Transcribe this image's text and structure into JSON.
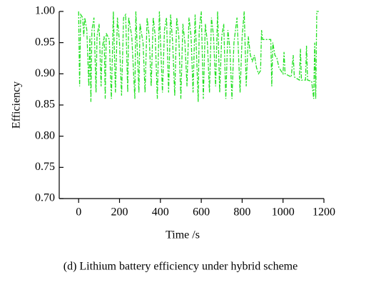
{
  "chart_data": {
    "type": "line",
    "caption": "(d) Lithium battery efficiency under hybrid scheme",
    "xlabel": "Time /s",
    "ylabel": "Efficiency",
    "xlim": [
      -95,
      1200
    ],
    "xticks": [
      0,
      200,
      400,
      600,
      800,
      1000,
      1200
    ],
    "ylim": [
      0.7,
      1.0
    ],
    "yticks": [
      {
        "value": 0.7,
        "label": "0.70"
      },
      {
        "value": 0.75,
        "label": "0.75"
      },
      {
        "value": 0.8,
        "label": "0.80"
      },
      {
        "value": 0.85,
        "label": "0.85"
      },
      {
        "value": 0.9,
        "label": "0.90"
      },
      {
        "value": 0.95,
        "label": "0.95"
      },
      {
        "value": 1.0,
        "label": "1.00"
      }
    ],
    "series": [
      {
        "color": "#22e022",
        "x": [
          0,
          5,
          10,
          20,
          25,
          30,
          40,
          50,
          55,
          60,
          65,
          75,
          85,
          90,
          100,
          110,
          115,
          125,
          130,
          135,
          150,
          160,
          170,
          180,
          190,
          200,
          210,
          220,
          230,
          240,
          245,
          260,
          275,
          280,
          295,
          300,
          315,
          325,
          335,
          345,
          355,
          365,
          375,
          385,
          395,
          410,
          420,
          430,
          440,
          450,
          460,
          470,
          480,
          490,
          500,
          510,
          520,
          530,
          540,
          550,
          560,
          570,
          585,
          590,
          600,
          610,
          620,
          630,
          640,
          650,
          660,
          670,
          680,
          690,
          700,
          710,
          720,
          730,
          740,
          750,
          760,
          775,
          790,
          800,
          810,
          820,
          830,
          840,
          850,
          860,
          870,
          880,
          890,
          895,
          900,
          940,
          945,
          950,
          960,
          970,
          980,
          990,
          1000,
          1005,
          1010,
          1040,
          1050,
          1055,
          1080,
          1085,
          1090,
          1110,
          1115,
          1120,
          1140,
          1150,
          1155,
          1160,
          1165,
          1175
        ],
        "values": [
          1.0,
          0.88,
          0.995,
          0.99,
          0.96,
          0.99,
          0.97,
          0.88,
          0.96,
          0.855,
          0.97,
          0.99,
          0.87,
          0.96,
          0.98,
          0.88,
          0.94,
          0.96,
          0.86,
          0.965,
          0.955,
          0.86,
          1.0,
          0.87,
          0.99,
          0.95,
          0.865,
          0.99,
          0.995,
          0.87,
          0.99,
          0.96,
          0.86,
          1.0,
          0.87,
          0.98,
          0.95,
          0.87,
          0.99,
          0.96,
          0.88,
          0.99,
          0.96,
          0.86,
          1.0,
          0.87,
          0.97,
          0.99,
          0.87,
          0.995,
          0.95,
          0.865,
          0.99,
          0.96,
          0.86,
          0.98,
          0.95,
          0.88,
          0.99,
          0.96,
          0.87,
          0.995,
          0.855,
          0.97,
          1.0,
          0.86,
          0.98,
          0.95,
          0.87,
          0.99,
          0.96,
          0.88,
          1.0,
          0.87,
          0.96,
          0.98,
          0.86,
          0.97,
          0.94,
          0.86,
          0.95,
          0.99,
          0.87,
          0.96,
          1.0,
          0.88,
          0.96,
          0.93,
          0.92,
          0.93,
          0.91,
          0.9,
          0.905,
          0.97,
          0.955,
          0.955,
          0.88,
          0.95,
          0.93,
          0.925,
          0.91,
          0.905,
          0.9,
          0.935,
          0.9,
          0.895,
          0.93,
          0.895,
          0.89,
          0.94,
          0.89,
          0.89,
          0.945,
          0.89,
          0.888,
          0.86,
          0.95,
          0.86,
          1.0,
          1.0
        ]
      }
    ]
  }
}
